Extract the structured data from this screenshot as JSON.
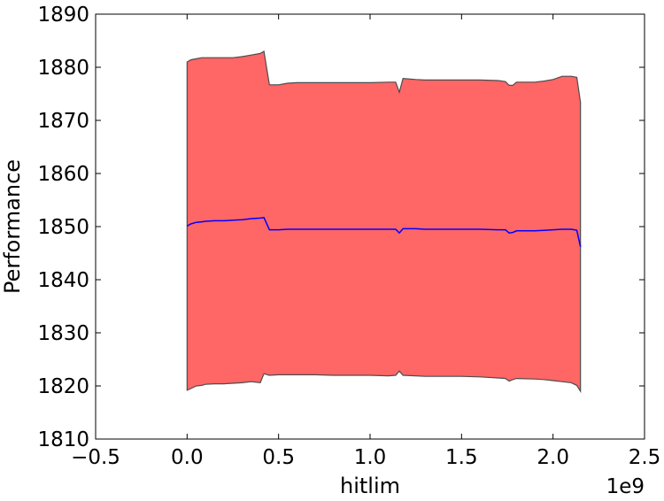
{
  "chart_data": {
    "type": "area",
    "title": "",
    "xlabel": "hitlim",
    "ylabel": "Performance",
    "x_offset_label": "1e9",
    "xlim": [
      -0.5,
      2.5
    ],
    "ylim": [
      1810,
      1890
    ],
    "xticks": [
      -0.5,
      0.0,
      0.5,
      1.0,
      1.5,
      2.0,
      2.5
    ],
    "xtick_labels": [
      "−0.5",
      "0.0",
      "0.5",
      "1.0",
      "1.5",
      "2.0",
      "2.5"
    ],
    "yticks": [
      1810,
      1820,
      1830,
      1840,
      1850,
      1860,
      1870,
      1880,
      1890
    ],
    "ytick_labels": [
      "1810",
      "1820",
      "1830",
      "1840",
      "1850",
      "1860",
      "1870",
      "1880",
      "1890"
    ],
    "grid": false,
    "x": [
      0.0,
      0.02,
      0.05,
      0.08,
      0.1,
      0.15,
      0.2,
      0.25,
      0.3,
      0.35,
      0.4,
      0.42,
      0.45,
      0.5,
      0.55,
      0.6,
      0.7,
      0.8,
      0.9,
      1.0,
      1.1,
      1.14,
      1.16,
      1.18,
      1.25,
      1.3,
      1.35,
      1.4,
      1.5,
      1.6,
      1.7,
      1.74,
      1.76,
      1.78,
      1.8,
      1.9,
      1.95,
      2.0,
      2.05,
      2.1,
      2.13,
      2.15
    ],
    "series": [
      {
        "role": "band",
        "upper": [
          1881.0,
          1881.4,
          1881.6,
          1881.8,
          1881.8,
          1881.8,
          1881.8,
          1881.8,
          1882.0,
          1882.3,
          1882.6,
          1883.0,
          1876.7,
          1876.7,
          1877.0,
          1877.1,
          1877.1,
          1877.1,
          1877.1,
          1877.1,
          1877.2,
          1877.2,
          1875.3,
          1877.9,
          1877.7,
          1877.6,
          1877.6,
          1877.6,
          1877.6,
          1877.6,
          1877.5,
          1877.3,
          1876.6,
          1876.6,
          1877.2,
          1877.2,
          1877.4,
          1877.7,
          1878.3,
          1878.3,
          1878.1,
          1873.4
        ],
        "lower": [
          1819.2,
          1819.5,
          1820.0,
          1820.1,
          1820.3,
          1820.4,
          1820.4,
          1820.5,
          1820.6,
          1820.8,
          1820.6,
          1822.3,
          1822.0,
          1822.1,
          1822.1,
          1822.1,
          1822.1,
          1822.0,
          1822.0,
          1822.0,
          1821.9,
          1822.0,
          1822.8,
          1822.0,
          1821.9,
          1821.8,
          1821.8,
          1821.8,
          1821.8,
          1821.7,
          1821.5,
          1821.4,
          1820.9,
          1821.2,
          1821.4,
          1821.3,
          1821.2,
          1821.0,
          1820.8,
          1820.6,
          1820.1,
          1819.0
        ],
        "fill_color": "#ff6666",
        "edge_color": "#4d4d4d"
      },
      {
        "role": "mean",
        "values": [
          1850.1,
          1850.5,
          1850.8,
          1850.9,
          1851.0,
          1851.1,
          1851.1,
          1851.2,
          1851.3,
          1851.5,
          1851.6,
          1851.7,
          1849.4,
          1849.4,
          1849.5,
          1849.5,
          1849.5,
          1849.5,
          1849.5,
          1849.5,
          1849.5,
          1849.5,
          1848.8,
          1849.6,
          1849.6,
          1849.5,
          1849.5,
          1849.5,
          1849.5,
          1849.5,
          1849.4,
          1849.4,
          1848.8,
          1848.9,
          1849.2,
          1849.2,
          1849.3,
          1849.4,
          1849.5,
          1849.5,
          1849.3,
          1846.2
        ],
        "color": "#0000ff"
      }
    ]
  }
}
